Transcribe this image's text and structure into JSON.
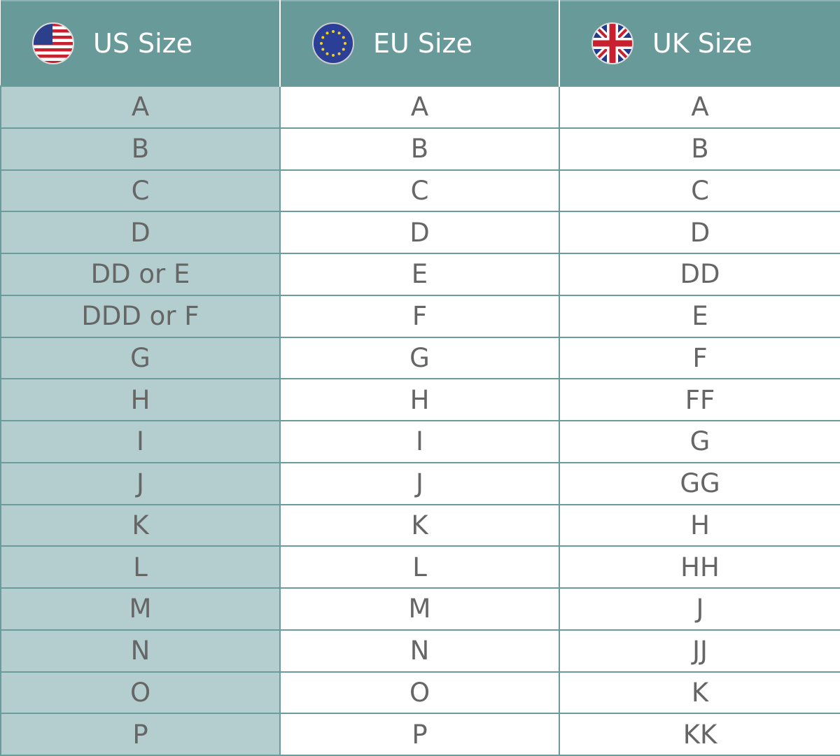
{
  "header": {
    "us": {
      "label": "US Size",
      "icon": "us-flag-icon"
    },
    "eu": {
      "label": "EU Size",
      "icon": "eu-flag-icon"
    },
    "uk": {
      "label": "UK Size",
      "icon": "uk-flag-icon"
    }
  },
  "colors": {
    "header_bg": "#689a9a",
    "us_column_bg": "#b4cdcf",
    "border": "#6a9c9c",
    "text": "#666666"
  },
  "rows": [
    {
      "us": "A",
      "eu": "A",
      "uk": "A"
    },
    {
      "us": "B",
      "eu": "B",
      "uk": "B"
    },
    {
      "us": "C",
      "eu": "C",
      "uk": "C"
    },
    {
      "us": "D",
      "eu": "D",
      "uk": "D"
    },
    {
      "us": "DD or E",
      "eu": "E",
      "uk": "DD"
    },
    {
      "us": "DDD or F",
      "eu": "F",
      "uk": "E"
    },
    {
      "us": "G",
      "eu": "G",
      "uk": "F"
    },
    {
      "us": "H",
      "eu": "H",
      "uk": "FF"
    },
    {
      "us": "I",
      "eu": "I",
      "uk": "G"
    },
    {
      "us": "J",
      "eu": "J",
      "uk": "GG"
    },
    {
      "us": "K",
      "eu": "K",
      "uk": "H"
    },
    {
      "us": "L",
      "eu": "L",
      "uk": "HH"
    },
    {
      "us": "M",
      "eu": "M",
      "uk": "J"
    },
    {
      "us": "N",
      "eu": "N",
      "uk": "JJ"
    },
    {
      "us": "O",
      "eu": "O",
      "uk": "K"
    },
    {
      "us": "P",
      "eu": "P",
      "uk": "KK"
    }
  ]
}
